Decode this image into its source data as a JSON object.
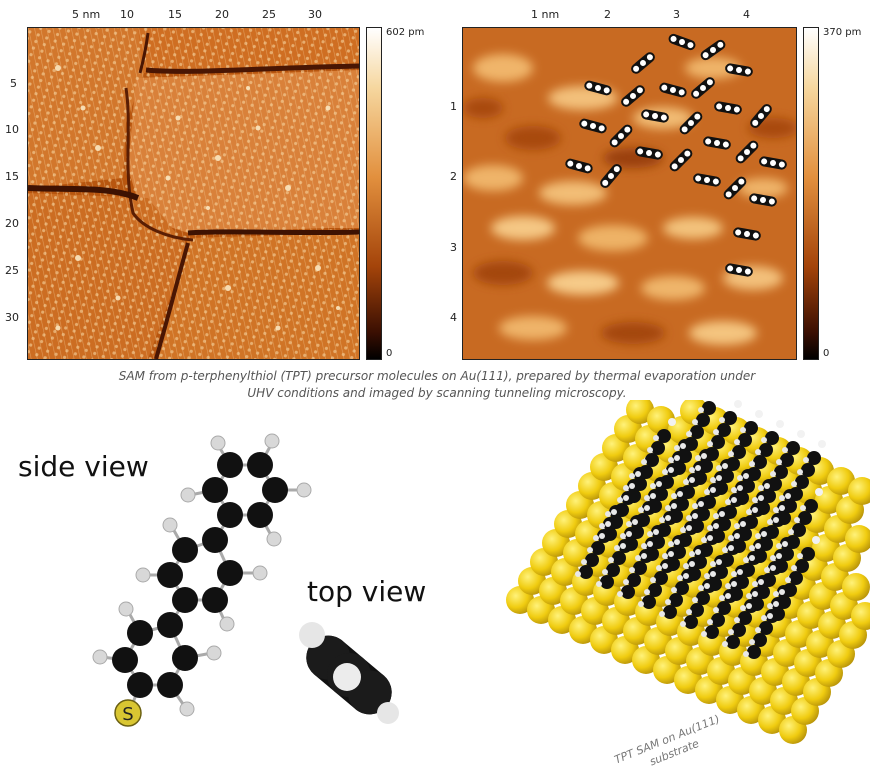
{
  "left_stm": {
    "x_ticks": [
      "5 nm",
      "10",
      "15",
      "20",
      "25",
      "30"
    ],
    "y_ticks": [
      "5",
      "10",
      "15",
      "20",
      "25",
      "30"
    ],
    "colorbar_max": "602 pm",
    "colorbar_min": "0"
  },
  "right_stm": {
    "x_ticks": [
      "1 nm",
      "2",
      "3",
      "4"
    ],
    "y_ticks": [
      "1",
      "2",
      "3",
      "4"
    ],
    "colorbar_max": "370 pm",
    "colorbar_min": "0"
  },
  "caption": {
    "line1": "SAM from p-terphenylthiol (TPT) precursor molecules on Au(111), prepared by thermal evaporation under",
    "line2": "UHV conditions and imaged by scanning tunneling microscopy."
  },
  "side_view_label": "side view",
  "top_view_label": "top view",
  "sulfur_label": "S",
  "sam_label": {
    "line1": "TPT SAM on Au(111)",
    "line2": "substrate"
  },
  "colors": {
    "stm_dark": "#5a1e04",
    "stm_mid": "#c2621a",
    "stm_light": "#f2c27a",
    "gold_atom": "#f0cc10",
    "carbon_atom": "#111111",
    "hydrogen_atom": "#d8d8d8",
    "sulfur_atom": "#d9c632"
  }
}
